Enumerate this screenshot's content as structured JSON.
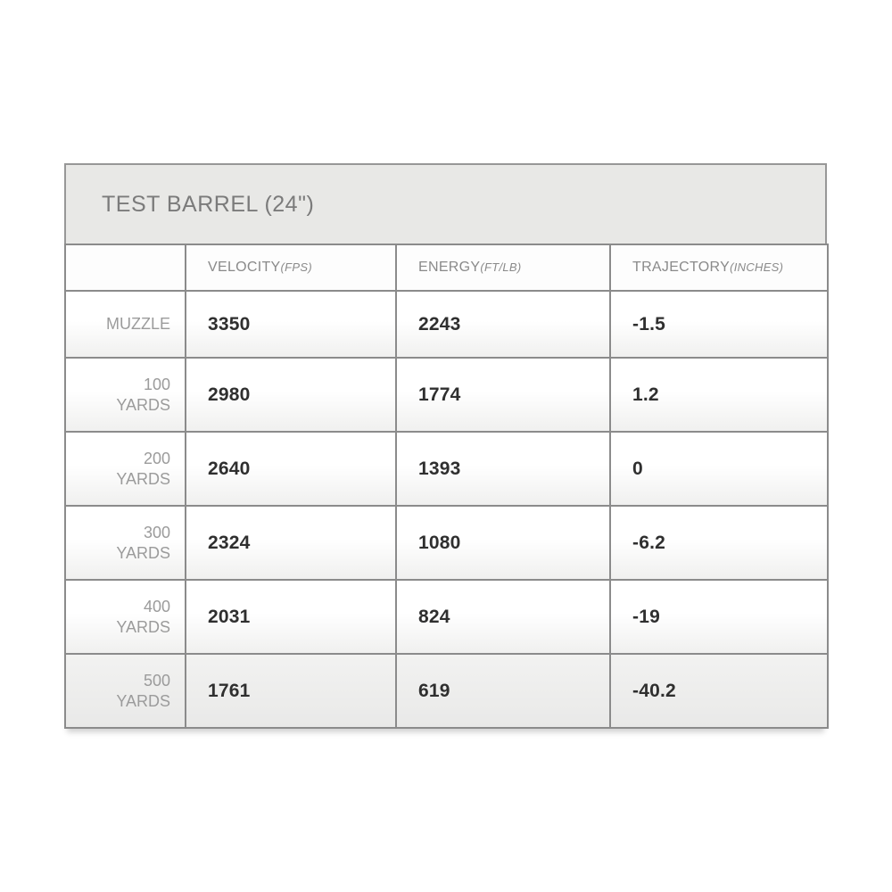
{
  "table": {
    "title": "TEST BARREL (24\")",
    "columns": [
      {
        "name": "VELOCITY",
        "unit": "(FPS)"
      },
      {
        "name": "ENERGY",
        "unit": "(FT/LB)"
      },
      {
        "name": "TRAJECTORY",
        "unit": "(INCHES)"
      }
    ],
    "rows": [
      {
        "label": "MUZZLE",
        "velocity": "3350",
        "energy": "2243",
        "trajectory": "-1.5"
      },
      {
        "label": "100\nYARDS",
        "velocity": "2980",
        "energy": "1774",
        "trajectory": "1.2"
      },
      {
        "label": "200\nYARDS",
        "velocity": "2640",
        "energy": "1393",
        "trajectory": "0"
      },
      {
        "label": "300\nYARDS",
        "velocity": "2324",
        "energy": "1080",
        "trajectory": "-6.2"
      },
      {
        "label": "400\nYARDS",
        "velocity": "2031",
        "energy": "824",
        "trajectory": "-19"
      },
      {
        "label": "500\nYARDS",
        "velocity": "1761",
        "energy": "619",
        "trajectory": "-40.2"
      }
    ],
    "colors": {
      "title_bg": "#e8e8e6",
      "title_text": "#7b7b7b",
      "header_text": "#8a8a8a",
      "label_text": "#9b9b9b",
      "value_text": "#2f2f2f",
      "border": "#8b8b8b"
    }
  }
}
